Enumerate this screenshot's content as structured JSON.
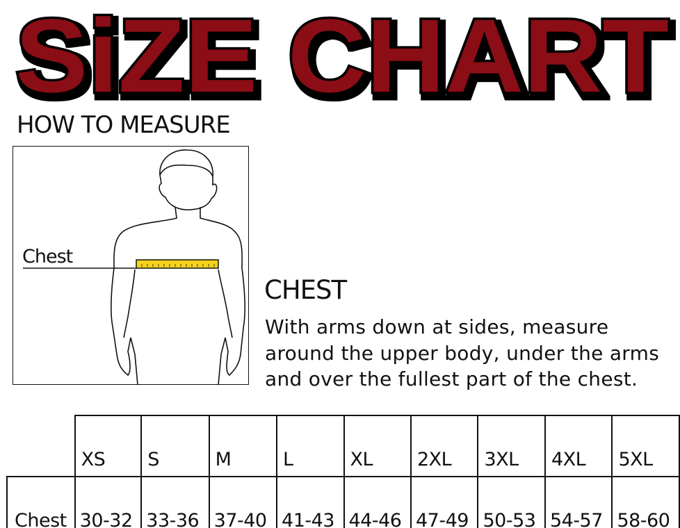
{
  "title": "SiZE CHART",
  "colors": {
    "title_fill": "#8b1014",
    "title_outline": "#000000",
    "tape": "#f5d21c"
  },
  "how_to_measure": "HOW TO MEASURE",
  "figure": {
    "label": "Chest"
  },
  "chest": {
    "heading": "CHEST",
    "lines": [
      "With arms down at sides, measure",
      "around the upper body, under the arms",
      "and over the fullest part of the chest."
    ]
  },
  "table": {
    "sizes": [
      "XS",
      "S",
      "M",
      "L",
      "XL",
      "2XL",
      "3XL",
      "4XL",
      "5XL"
    ],
    "rows": [
      {
        "label": "Chest",
        "values": [
          "30-32",
          "33-36",
          "37-40",
          "41-43",
          "44-46",
          "47-49",
          "50-53",
          "54-57",
          "58-60"
        ]
      }
    ]
  }
}
